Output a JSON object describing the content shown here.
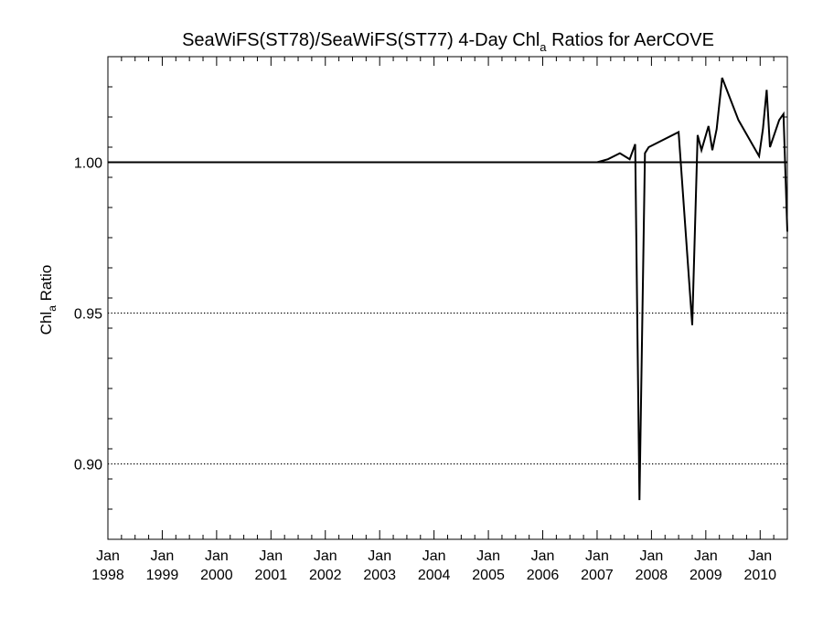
{
  "chart_data": {
    "type": "line",
    "title": "SeaWiFS(ST78)/SeaWiFS(ST77) 4-Day Chl",
    "title_subscript": "a",
    "title_suffix": " Ratios for AerCOVE",
    "ylabel": "Chl",
    "ylabel_subscript": "a",
    "ylabel_suffix": " Ratio",
    "xlabel": "",
    "xlim": [
      1998.0,
      2010.5
    ],
    "ylim": [
      0.875,
      1.035
    ],
    "y_ticks": [
      {
        "value": 0.9,
        "label": "0.90"
      },
      {
        "value": 0.95,
        "label": "0.95"
      },
      {
        "value": 1.0,
        "label": "1.00"
      }
    ],
    "x_ticks": [
      {
        "value": 1998,
        "month": "Jan",
        "year": "1998"
      },
      {
        "value": 1999,
        "month": "Jan",
        "year": "1999"
      },
      {
        "value": 2000,
        "month": "Jan",
        "year": "2000"
      },
      {
        "value": 2001,
        "month": "Jan",
        "year": "2001"
      },
      {
        "value": 2002,
        "month": "Jan",
        "year": "2002"
      },
      {
        "value": 2003,
        "month": "Jan",
        "year": "2003"
      },
      {
        "value": 2004,
        "month": "Jan",
        "year": "2004"
      },
      {
        "value": 2005,
        "month": "Jan",
        "year": "2005"
      },
      {
        "value": 2006,
        "month": "Jan",
        "year": "2006"
      },
      {
        "value": 2007,
        "month": "Jan",
        "year": "2007"
      },
      {
        "value": 2008,
        "month": "Jan",
        "year": "2008"
      },
      {
        "value": 2009,
        "month": "Jan",
        "year": "2009"
      },
      {
        "value": 2010,
        "month": "Jan",
        "year": "2010"
      }
    ],
    "reference_lines": [
      {
        "value": 1.0,
        "style": "solid"
      },
      {
        "value": 0.95,
        "style": "dotted"
      },
      {
        "value": 0.9,
        "style": "dotted"
      }
    ],
    "series": [
      {
        "x": [
          1998.0,
          2007.0,
          2007.2,
          2007.42,
          2007.6,
          2007.7,
          2007.78,
          2007.88,
          2007.95,
          2008.5,
          2008.75,
          2008.85,
          2008.92,
          2009.05,
          2009.12,
          2009.2,
          2009.3,
          2009.6,
          2009.98,
          2010.05,
          2010.12,
          2010.18,
          2010.35,
          2010.43,
          2010.5
        ],
        "y": [
          1.0,
          1.0,
          1.001,
          1.003,
          1.001,
          1.006,
          0.888,
          1.003,
          1.005,
          1.01,
          0.946,
          1.009,
          1.004,
          1.012,
          1.004,
          1.011,
          1.028,
          1.014,
          1.002,
          1.011,
          1.024,
          1.005,
          1.014,
          1.016,
          0.977
        ]
      }
    ]
  }
}
